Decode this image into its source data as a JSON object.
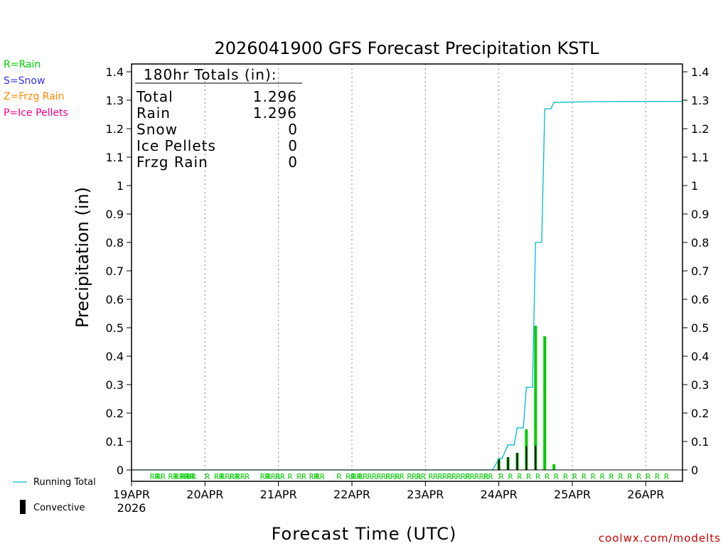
{
  "chart_data": {
    "type": "bar",
    "title": "2026041900 GFS Forecast Precipitation KSTL",
    "xlabel": "Forecast Time (UTC)",
    "ylabel": "Precipitation (in)",
    "ylim": [
      0,
      1.4
    ],
    "yticks": [
      0,
      0.1,
      0.2,
      0.3,
      0.4,
      0.5,
      0.6,
      0.7,
      0.8,
      0.9,
      1,
      1.1,
      1.2,
      1.3,
      1.4
    ],
    "ytick_labels": [
      "0",
      "0.1",
      "0.2",
      "0.3",
      "0.4",
      "0.5",
      "0.6",
      "0.7",
      "0.8",
      "0.9",
      "1",
      "1.1",
      "1.2",
      "1.3",
      "1.4"
    ],
    "xlim_hours": [
      0,
      180
    ],
    "grid": "vertical dotted lines at each day",
    "day_labels": [
      {
        "hour": 0,
        "label": "19APR",
        "sublabel": "2026"
      },
      {
        "hour": 24,
        "label": "20APR"
      },
      {
        "hour": 48,
        "label": "21APR"
      },
      {
        "hour": 72,
        "label": "22APR"
      },
      {
        "hour": 96,
        "label": "23APR"
      },
      {
        "hour": 120,
        "label": "24APR"
      },
      {
        "hour": 144,
        "label": "25APR"
      },
      {
        "hour": 168,
        "label": "26APR"
      }
    ],
    "legend": {
      "ptype_keys": [
        {
          "text": "R=Rain",
          "color": "#00cc00"
        },
        {
          "text": "S=Snow",
          "color": "#3333ff"
        },
        {
          "text": "Z=Frzg Rain",
          "color": "#ff8800"
        },
        {
          "text": "P=Ice Pellets",
          "color": "#ff0088"
        }
      ],
      "running_total": "Running Total",
      "convective": "Convective"
    },
    "totals_box": {
      "header": "180hr Totals (in):",
      "rows": [
        {
          "label": "Total",
          "value": "1.296"
        },
        {
          "label": "Rain",
          "value": "1.296"
        },
        {
          "label": "Snow",
          "value": "0"
        },
        {
          "label": "Ice Pellets",
          "value": "0"
        },
        {
          "label": "Frzg Rain",
          "value": "0"
        }
      ]
    },
    "series": [
      {
        "name": "Precipitation (Rain)",
        "color": "#00cc00",
        "points": [
          {
            "hour": 120,
            "value": 0.04
          },
          {
            "hour": 123,
            "value": 0.045
          },
          {
            "hour": 126,
            "value": 0.06
          },
          {
            "hour": 129,
            "value": 0.143
          },
          {
            "hour": 132,
            "value": 0.507
          },
          {
            "hour": 135,
            "value": 0.47
          },
          {
            "hour": 138,
            "value": 0.02
          }
        ]
      },
      {
        "name": "Convective",
        "color": "#000000",
        "points": [
          {
            "hour": 120,
            "value": 0.04
          },
          {
            "hour": 123,
            "value": 0.045
          },
          {
            "hour": 126,
            "value": 0.06
          },
          {
            "hour": 129,
            "value": 0.083
          },
          {
            "hour": 132,
            "value": 0.085
          }
        ]
      },
      {
        "name": "Running Total",
        "color": "#00bbcc",
        "points": [
          {
            "hour": 0,
            "value": 0
          },
          {
            "hour": 118,
            "value": 0
          },
          {
            "hour": 120,
            "value": 0.04
          },
          {
            "hour": 121,
            "value": 0.04
          },
          {
            "hour": 123,
            "value": 0.088
          },
          {
            "hour": 125,
            "value": 0.088
          },
          {
            "hour": 126,
            "value": 0.148
          },
          {
            "hour": 128,
            "value": 0.148
          },
          {
            "hour": 129,
            "value": 0.291
          },
          {
            "hour": 131,
            "value": 0.291
          },
          {
            "hour": 132,
            "value": 0.8
          },
          {
            "hour": 134,
            "value": 0.8
          },
          {
            "hour": 135,
            "value": 1.27
          },
          {
            "hour": 137,
            "value": 1.27
          },
          {
            "hour": 138,
            "value": 1.292
          },
          {
            "hour": 150,
            "value": 1.295
          },
          {
            "hour": 180,
            "value": 1.296
          }
        ]
      }
    ],
    "ptype_marks": [
      {
        "hour": 6,
        "text": "RR"
      },
      {
        "hour": 8,
        "text": "RR"
      },
      {
        "hour": 12,
        "text": "RR"
      },
      {
        "hour": 14,
        "text": "RRR"
      },
      {
        "hour": 16,
        "text": "RRR"
      },
      {
        "hour": 18,
        "text": "RR"
      },
      {
        "hour": 24,
        "text": "R"
      },
      {
        "hour": 27,
        "text": "RR"
      },
      {
        "hour": 29,
        "text": "RRR"
      },
      {
        "hour": 32,
        "text": "RR"
      },
      {
        "hour": 34,
        "text": "RR"
      },
      {
        "hour": 37,
        "text": "R"
      },
      {
        "hour": 42,
        "text": "RR"
      },
      {
        "hour": 44,
        "text": "RRR"
      },
      {
        "hour": 47,
        "text": "RR"
      },
      {
        "hour": 51,
        "text": "R"
      },
      {
        "hour": 54,
        "text": "RR"
      },
      {
        "hour": 58,
        "text": "RR"
      },
      {
        "hour": 60,
        "text": "RR"
      },
      {
        "hour": 67,
        "text": "R"
      },
      {
        "hour": 70,
        "text": "RR"
      },
      {
        "hour": 72,
        "text": "RR"
      },
      {
        "hour": 74,
        "text": "RR"
      },
      {
        "hour": 77,
        "text": "RR"
      },
      {
        "hour": 80,
        "text": "RRR"
      },
      {
        "hour": 83,
        "text": "RRR"
      },
      {
        "hour": 86,
        "text": "RR"
      },
      {
        "hour": 90,
        "text": "RRR"
      },
      {
        "hour": 93,
        "text": "RR"
      },
      {
        "hour": 97,
        "text": "RR"
      },
      {
        "hour": 100,
        "text": "RRR"
      },
      {
        "hour": 103,
        "text": "RR"
      },
      {
        "hour": 106,
        "text": "RRR"
      },
      {
        "hour": 109,
        "text": "RR"
      },
      {
        "hour": 112,
        "text": "RRR"
      },
      {
        "hour": 115,
        "text": "RR"
      },
      {
        "hour": 120,
        "text": "R"
      },
      {
        "hour": 123,
        "text": "R"
      },
      {
        "hour": 126,
        "text": "R"
      },
      {
        "hour": 129,
        "text": "R"
      },
      {
        "hour": 132,
        "text": "R"
      },
      {
        "hour": 135,
        "text": "R"
      },
      {
        "hour": 138,
        "text": "R"
      },
      {
        "hour": 141,
        "text": "R"
      },
      {
        "hour": 144,
        "text": "R"
      },
      {
        "hour": 147,
        "text": "R"
      },
      {
        "hour": 150,
        "text": "R"
      },
      {
        "hour": 153,
        "text": "R"
      },
      {
        "hour": 156,
        "text": "R"
      },
      {
        "hour": 159,
        "text": "R"
      },
      {
        "hour": 162,
        "text": "R"
      },
      {
        "hour": 165,
        "text": "R"
      },
      {
        "hour": 168,
        "text": "R"
      },
      {
        "hour": 171,
        "text": "R"
      },
      {
        "hour": 174,
        "text": "R"
      }
    ],
    "source_label": "coolwx.com/modelts"
  }
}
